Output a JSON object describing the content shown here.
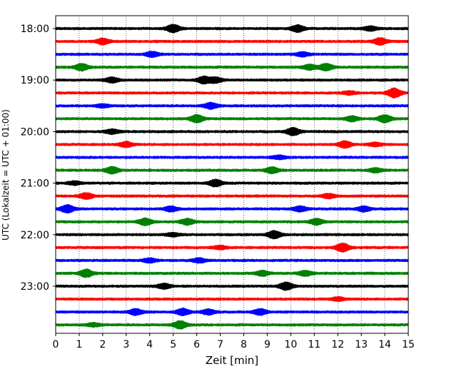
{
  "chart_data": {
    "type": "line",
    "title": "",
    "xlabel": "Zeit  [min]",
    "ylabel": "UTC (Lokalzeit = UTC + 01:00)",
    "xlim": [
      0,
      15
    ],
    "x_ticks": [
      "0",
      "1",
      "2",
      "3",
      "4",
      "5",
      "6",
      "7",
      "8",
      "9",
      "10",
      "11",
      "12",
      "13",
      "14",
      "15"
    ],
    "y_ticks": [
      "18:00",
      "19:00",
      "20:00",
      "21:00",
      "22:00",
      "23:00"
    ],
    "grid": "vertical dotted lines at each minute",
    "trace_interval_minutes": 15,
    "trace_colors": [
      "#000000",
      "#ff0000",
      "#0000ff",
      "#008000"
    ],
    "traces": [
      {
        "start": "18:00",
        "color": "#000000",
        "bursts": [
          [
            5.0,
            4.5
          ],
          [
            10.3,
            4.0
          ],
          [
            13.4,
            2.5
          ]
        ]
      },
      {
        "start": "18:15",
        "color": "#ff0000",
        "bursts": [
          [
            2.0,
            3.5
          ],
          [
            13.8,
            4.0
          ]
        ]
      },
      {
        "start": "18:30",
        "color": "#0000ff",
        "bursts": [
          [
            4.1,
            3.0
          ],
          [
            10.5,
            2.5
          ]
        ]
      },
      {
        "start": "18:45",
        "color": "#008000",
        "bursts": [
          [
            1.1,
            4.0
          ],
          [
            10.8,
            3.0
          ],
          [
            11.5,
            4.0
          ]
        ]
      },
      {
        "start": "19:00",
        "color": "#000000",
        "bursts": [
          [
            2.4,
            3.0
          ],
          [
            6.3,
            4.0
          ],
          [
            6.8,
            3.0
          ]
        ]
      },
      {
        "start": "19:15",
        "color": "#ff0000",
        "bursts": [
          [
            14.4,
            5.5
          ],
          [
            12.5,
            2.0
          ]
        ]
      },
      {
        "start": "19:30",
        "color": "#0000ff",
        "bursts": [
          [
            6.6,
            3.5
          ],
          [
            2.0,
            2.0
          ]
        ]
      },
      {
        "start": "19:45",
        "color": "#008000",
        "bursts": [
          [
            6.0,
            4.5
          ],
          [
            12.6,
            3.0
          ],
          [
            14.0,
            4.5
          ]
        ]
      },
      {
        "start": "20:00",
        "color": "#000000",
        "bursts": [
          [
            10.1,
            4.5
          ],
          [
            2.4,
            2.5
          ]
        ]
      },
      {
        "start": "20:15",
        "color": "#ff0000",
        "bursts": [
          [
            3.0,
            3.0
          ],
          [
            12.3,
            4.0
          ],
          [
            13.6,
            2.0
          ]
        ]
      },
      {
        "start": "20:30",
        "color": "#0000ff",
        "bursts": [
          [
            9.5,
            2.0
          ]
        ]
      },
      {
        "start": "20:45",
        "color": "#008000",
        "bursts": [
          [
            2.4,
            4.0
          ],
          [
            9.2,
            3.5
          ],
          [
            13.6,
            2.5
          ]
        ]
      },
      {
        "start": "21:00",
        "color": "#000000",
        "bursts": [
          [
            6.8,
            4.0
          ],
          [
            0.8,
            2.0
          ]
        ]
      },
      {
        "start": "21:15",
        "color": "#ff0000",
        "bursts": [
          [
            1.3,
            3.5
          ],
          [
            11.6,
            2.5
          ]
        ]
      },
      {
        "start": "21:30",
        "color": "#0000ff",
        "bursts": [
          [
            0.5,
            4.5
          ],
          [
            4.9,
            3.0
          ],
          [
            10.4,
            3.0
          ],
          [
            13.1,
            3.0
          ]
        ]
      },
      {
        "start": "21:45",
        "color": "#008000",
        "bursts": [
          [
            3.8,
            4.0
          ],
          [
            5.6,
            3.5
          ],
          [
            11.1,
            3.5
          ]
        ]
      },
      {
        "start": "22:00",
        "color": "#000000",
        "bursts": [
          [
            9.3,
            4.5
          ],
          [
            5.0,
            2.0
          ]
        ]
      },
      {
        "start": "22:15",
        "color": "#ff0000",
        "bursts": [
          [
            12.2,
            5.0
          ],
          [
            7.0,
            2.0
          ]
        ]
      },
      {
        "start": "22:30",
        "color": "#0000ff",
        "bursts": [
          [
            4.0,
            2.5
          ],
          [
            6.1,
            2.5
          ]
        ]
      },
      {
        "start": "22:45",
        "color": "#008000",
        "bursts": [
          [
            1.3,
            4.5
          ],
          [
            8.8,
            3.0
          ],
          [
            10.6,
            3.0
          ]
        ]
      },
      {
        "start": "23:00",
        "color": "#000000",
        "bursts": [
          [
            9.8,
            4.5
          ],
          [
            4.6,
            3.0
          ]
        ]
      },
      {
        "start": "23:15",
        "color": "#ff0000",
        "bursts": [
          [
            12.0,
            2.0
          ]
        ]
      },
      {
        "start": "23:30",
        "color": "#0000ff",
        "bursts": [
          [
            3.4,
            3.5
          ],
          [
            5.4,
            4.0
          ],
          [
            8.7,
            3.5
          ],
          [
            6.5,
            3.0
          ]
        ]
      },
      {
        "start": "23:45",
        "color": "#008000",
        "bursts": [
          [
            5.3,
            4.5
          ],
          [
            1.6,
            2.0
          ]
        ]
      }
    ]
  }
}
